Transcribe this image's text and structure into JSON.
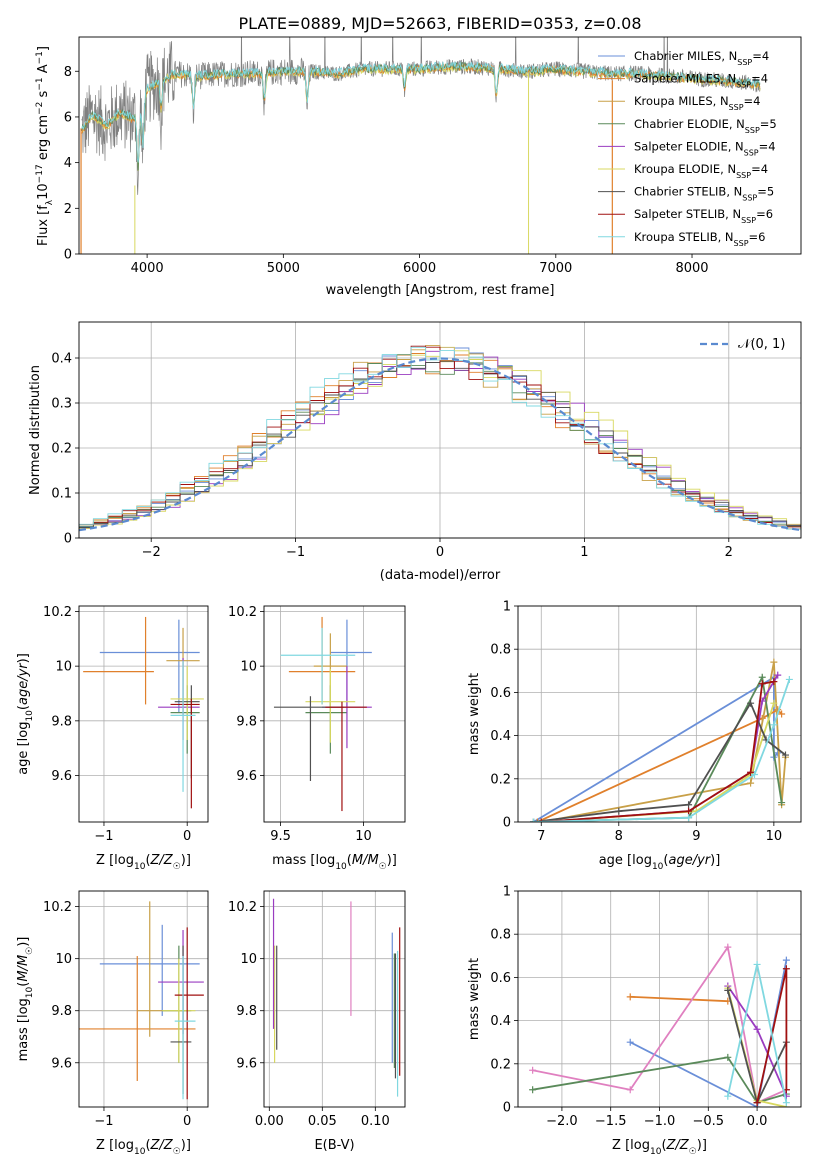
{
  "figure": {
    "title": "PLATE=0889, MJD=52663, FIBERID=0353, z=0.08"
  },
  "colors": {
    "data_spectrum": "#808080",
    "Chabrier MILES": "#6a8fd8",
    "Salpeter MILES": "#e0802c",
    "Kroupa MILES": "#c8a048",
    "Chabrier ELODIE": "#5a8a5a",
    "Salpeter ELODIE": "#9a3cc0",
    "Kroupa ELODIE": "#d8d860",
    "Chabrier STELIB": "#505050",
    "Salpeter STELIB": "#a01010",
    "Kroupa STELIB": "#80d8e0",
    "Kroupa MILES lines": "#e080c0",
    "normal_dist": "#5a8ad0"
  },
  "chart_data": [
    {
      "id": "spectrum",
      "type": "line",
      "title": "PLATE=0889, MJD=52663, FIBERID=0353, z=0.08",
      "xlabel": "wavelength [Angstrom, rest frame]",
      "ylabel": "Flux [f_λ 10^-17 erg cm^-2 s^-1 A^-1]",
      "xlim": [
        3500,
        8800
      ],
      "ylim": [
        0,
        9.5
      ],
      "xticks": [
        4000,
        5000,
        6000,
        7000,
        8000
      ],
      "yticks": [
        0,
        2,
        4,
        6,
        8
      ],
      "grid": false,
      "legend_loc": "upper right",
      "legend": [
        {
          "label": "Chabrier MILES, N",
          "sub": "SSP",
          "suffix": "=4",
          "color": "#6a8fd8"
        },
        {
          "label": "Salpeter MILES, N",
          "sub": "SSP",
          "suffix": "=4",
          "color": "#e0802c"
        },
        {
          "label": "Kroupa MILES, N",
          "sub": "SSP",
          "suffix": "=4",
          "color": "#c8a048"
        },
        {
          "label": "Chabrier ELODIE, N",
          "sub": "SSP",
          "suffix": "=5",
          "color": "#5a8a5a"
        },
        {
          "label": "Salpeter ELODIE, N",
          "sub": "SSP",
          "suffix": "=4",
          "color": "#9a3cc0"
        },
        {
          "label": "Kroupa ELODIE, N",
          "sub": "SSP",
          "suffix": "=4",
          "color": "#d8d860"
        },
        {
          "label": "Chabrier STELIB, N",
          "sub": "SSP",
          "suffix": "=5",
          "color": "#505050"
        },
        {
          "label": "Salpeter STELIB, N",
          "sub": "SSP",
          "suffix": "=6",
          "color": "#a01010"
        },
        {
          "label": "Kroupa STELIB, N",
          "sub": "SSP",
          "suffix": "=6",
          "color": "#80d8e0"
        }
      ],
      "spectrum_envelope": {
        "x": [
          3520,
          3600,
          3700,
          3800,
          3900,
          4000,
          4100,
          4200,
          4400,
          4600,
          4800,
          5000,
          5200,
          5400,
          5600,
          5800,
          6000,
          6200,
          6400,
          6600,
          6800,
          7000,
          7200,
          7400,
          7600,
          7800,
          8000,
          8200,
          8400,
          8500
        ],
        "y": [
          5.4,
          6.1,
          5.6,
          6.2,
          5.9,
          7.2,
          7.6,
          7.9,
          7.8,
          7.9,
          7.9,
          8.0,
          8.0,
          7.9,
          8.1,
          8.1,
          8.1,
          8.2,
          8.2,
          8.1,
          8.0,
          8.1,
          8.0,
          7.9,
          7.9,
          7.8,
          7.7,
          7.6,
          7.5,
          7.4
        ]
      }
    },
    {
      "id": "residuals",
      "type": "histogram",
      "xlabel": "(data-model)/error",
      "ylabel": "Normed distribution",
      "xlim": [
        -2.5,
        2.5
      ],
      "ylim": [
        0,
        0.48
      ],
      "xticks": [
        -2,
        -1,
        0,
        1,
        2
      ],
      "yticks": [
        0.0,
        0.1,
        0.2,
        0.3,
        0.4
      ],
      "grid": true,
      "legend_loc": "upper right",
      "legend": [
        {
          "label": "𝒩(0, 1)",
          "color": "#5a8ad0",
          "style": "dashed"
        }
      ]
    },
    {
      "id": "age_vs_Z",
      "type": "errorbar",
      "xlabel": "Z [log10(Z/Z☉)]",
      "ylabel": "age [log10(age/yr)]",
      "xlim": [
        -1.3,
        0.25
      ],
      "ylim": [
        9.43,
        10.22
      ],
      "xticks": [
        -1,
        0
      ],
      "yticks": [
        9.6,
        9.8,
        10.0,
        10.2
      ],
      "grid": true,
      "points": [
        {
          "series": "Chabrier MILES",
          "x": -0.1,
          "xerr": [
            0.95,
            0.25
          ],
          "y": 10.05,
          "yerr": [
            0.22,
            0.12
          ]
        },
        {
          "series": "Salpeter MILES",
          "x": -0.5,
          "xerr": [
            0.75,
            0.1
          ],
          "y": 9.98,
          "yerr": [
            0.12,
            0.2
          ]
        },
        {
          "series": "Kroupa MILES",
          "x": -0.05,
          "xerr": [
            0.2,
            0.2
          ],
          "y": 10.02,
          "yerr": [
            0.2,
            0.12
          ]
        },
        {
          "series": "Chabrier ELODIE",
          "x": 0.0,
          "xerr": [
            0.2,
            0.15
          ],
          "y": 9.83,
          "yerr": [
            0.15,
            0.1
          ]
        },
        {
          "series": "Salpeter ELODIE",
          "x": -0.05,
          "xerr": [
            0.3,
            0.2
          ],
          "y": 9.85,
          "yerr": [
            0.12,
            0.18
          ]
        },
        {
          "series": "Kroupa ELODIE",
          "x": 0.0,
          "xerr": [
            0.2,
            0.2
          ],
          "y": 9.88,
          "yerr": [
            0.15,
            0.12
          ]
        },
        {
          "series": "Chabrier STELIB",
          "x": 0.05,
          "xerr": [
            0.2,
            0.1
          ],
          "y": 9.87,
          "yerr": [
            0.28,
            0.06
          ]
        },
        {
          "series": "Salpeter STELIB",
          "x": 0.05,
          "xerr": [
            0.25,
            0.1
          ],
          "y": 9.86,
          "yerr": [
            0.38,
            0.02
          ]
        },
        {
          "series": "Kroupa STELIB",
          "x": -0.05,
          "xerr": [
            0.15,
            0.15
          ],
          "y": 9.82,
          "yerr": [
            0.28,
            0.2
          ]
        }
      ]
    },
    {
      "id": "age_vs_mass",
      "type": "errorbar",
      "xlabel": "mass [log10(M/M☉)]",
      "ylabel": "",
      "xlim": [
        9.4,
        10.25
      ],
      "ylim": [
        9.43,
        10.22
      ],
      "xticks": [
        9.5,
        10.0
      ],
      "yticks": [
        9.6,
        9.8,
        10.0,
        10.2
      ],
      "grid": true,
      "points": [
        {
          "series": "Chabrier MILES",
          "x": 9.9,
          "xerr": [
            0.1,
            0.15
          ],
          "y": 10.05,
          "yerr": [
            0.2,
            0.12
          ]
        },
        {
          "series": "Salpeter MILES",
          "x": 9.75,
          "xerr": [
            0.2,
            0.2
          ],
          "y": 9.98,
          "yerr": [
            0.12,
            0.2
          ]
        },
        {
          "series": "Kroupa MILES",
          "x": 9.8,
          "xerr": [
            0.1,
            0.1
          ],
          "y": 10.0,
          "yerr": [
            0.15,
            0.12
          ]
        },
        {
          "series": "Chabrier ELODIE",
          "x": 9.8,
          "xerr": [
            0.15,
            0.1
          ],
          "y": 9.83,
          "yerr": [
            0.15,
            0.1
          ]
        },
        {
          "series": "Salpeter ELODIE",
          "x": 9.9,
          "xerr": [
            0.15,
            0.15
          ],
          "y": 9.85,
          "yerr": [
            0.15,
            0.15
          ]
        },
        {
          "series": "Kroupa ELODIE",
          "x": 9.8,
          "xerr": [
            0.15,
            0.15
          ],
          "y": 9.87,
          "yerr": [
            0.15,
            0.12
          ]
        },
        {
          "series": "Chabrier STELIB",
          "x": 9.68,
          "xerr": [
            0.22,
            0.2
          ],
          "y": 9.85,
          "yerr": [
            0.27,
            0.04
          ]
        },
        {
          "series": "Salpeter STELIB",
          "x": 9.87,
          "xerr": [
            0.1,
            0.15
          ],
          "y": 9.85,
          "yerr": [
            0.38,
            0.02
          ]
        },
        {
          "series": "Kroupa STELIB",
          "x": 9.75,
          "xerr": [
            0.25,
            0.2
          ],
          "y": 10.04,
          "yerr": [
            0.18,
            0.1
          ]
        }
      ]
    },
    {
      "id": "massweight_vs_age",
      "type": "line",
      "xlabel": "age [log10(age/yr)]",
      "ylabel": "mass weight",
      "xlim": [
        6.7,
        10.35
      ],
      "ylim": [
        0,
        1.0
      ],
      "xticks": [
        7,
        8,
        9,
        10
      ],
      "yticks": [
        0.0,
        0.2,
        0.4,
        0.6,
        0.8,
        1.0
      ],
      "grid": true,
      "series": [
        {
          "name": "Chabrier MILES",
          "x": [
            6.9,
            10.0,
            10.0,
            10.05
          ],
          "y": [
            0.0,
            0.67,
            0.3,
            0.32
          ]
        },
        {
          "name": "Salpeter MILES",
          "x": [
            6.95,
            9.85,
            10.05,
            10.1
          ],
          "y": [
            0.0,
            0.48,
            0.52,
            0.5
          ]
        },
        {
          "name": "Kroupa MILES",
          "x": [
            7.0,
            9.7,
            10.0,
            10.1,
            10.15
          ],
          "y": [
            0.0,
            0.18,
            0.74,
            0.08,
            0.3
          ]
        },
        {
          "name": "Chabrier ELODIE",
          "x": [
            6.9,
            8.9,
            9.85,
            10.1
          ],
          "y": [
            0.0,
            0.02,
            0.67,
            0.09
          ]
        },
        {
          "name": "Salpeter ELODIE",
          "x": [
            7.0,
            8.9,
            9.7,
            9.85,
            10.05
          ],
          "y": [
            0.0,
            0.05,
            0.23,
            0.56,
            0.68
          ]
        },
        {
          "name": "Kroupa ELODIE",
          "x": [
            7.0,
            9.0,
            9.7,
            10.0
          ],
          "y": [
            0.0,
            0.05,
            0.22,
            0.55
          ]
        },
        {
          "name": "Chabrier STELIB",
          "x": [
            6.9,
            8.0,
            8.9,
            9.7,
            9.9,
            10.15
          ],
          "y": [
            0.0,
            0.05,
            0.08,
            0.55,
            0.38,
            0.31
          ]
        },
        {
          "name": "Salpeter STELIB",
          "x": [
            7.0,
            8.9,
            9.7,
            9.85,
            10.0
          ],
          "y": [
            0.0,
            0.05,
            0.23,
            0.64,
            0.65
          ]
        },
        {
          "name": "Kroupa STELIB",
          "x": [
            6.9,
            8.9,
            9.75,
            10.0,
            10.2
          ],
          "y": [
            0.0,
            0.02,
            0.22,
            0.45,
            0.66
          ]
        }
      ]
    },
    {
      "id": "mass_vs_Z",
      "type": "errorbar",
      "xlabel": "Z [log10(Z/Z☉)]",
      "ylabel": "mass [log10(M/M☉)]",
      "xlim": [
        -1.3,
        0.25
      ],
      "ylim": [
        9.43,
        10.26
      ],
      "xticks": [
        -1,
        0
      ],
      "yticks": [
        9.6,
        9.8,
        10.0,
        10.2
      ],
      "grid": true,
      "points": [
        {
          "series": "Chabrier MILES",
          "x": -0.3,
          "xerr": [
            0.75,
            0.45
          ],
          "y": 9.98,
          "yerr": [
            0.2,
            0.15
          ]
        },
        {
          "series": "Salpeter MILES",
          "x": -0.6,
          "xerr": [
            0.7,
            0.7
          ],
          "y": 9.73,
          "yerr": [
            0.2,
            0.28
          ]
        },
        {
          "series": "Kroupa MILES",
          "x": -0.45,
          "xerr": [
            0.15,
            0.45
          ],
          "y": 9.8,
          "yerr": [
            0.1,
            0.42
          ]
        },
        {
          "series": "Chabrier ELODIE",
          "x": -0.1,
          "xerr": [
            0.2,
            0.15
          ],
          "y": 9.8,
          "yerr": [
            0.2,
            0.25
          ]
        },
        {
          "series": "Salpeter ELODIE",
          "x": -0.05,
          "xerr": [
            0.3,
            0.25
          ],
          "y": 9.91,
          "yerr": [
            0.2,
            0.2
          ]
        },
        {
          "series": "Kroupa ELODIE",
          "x": -0.1,
          "xerr": [
            0.2,
            0.2
          ],
          "y": 9.8,
          "yerr": [
            0.2,
            0.2
          ]
        },
        {
          "series": "Chabrier STELIB",
          "x": -0.05,
          "xerr": [
            0.15,
            0.1
          ],
          "y": 9.68,
          "yerr": [
            0.2,
            0.37
          ]
        },
        {
          "series": "Salpeter STELIB",
          "x": 0.0,
          "xerr": [
            0.15,
            0.2
          ],
          "y": 9.86,
          "yerr": [
            0.4,
            0.26
          ]
        },
        {
          "series": "Kroupa STELIB",
          "x": -0.05,
          "xerr": [
            0.1,
            0.15
          ],
          "y": 9.76,
          "yerr": [
            0.3,
            0.25
          ]
        }
      ]
    },
    {
      "id": "ebv_panel",
      "type": "errorbar",
      "xlabel": "E(B-V)",
      "ylabel": "",
      "xlim": [
        -0.005,
        0.128
      ],
      "ylim": [
        9.43,
        10.26
      ],
      "xticks": [
        0.0,
        0.05,
        0.1
      ],
      "xtick_labels": [
        "0.00",
        "0.05",
        "0.10"
      ],
      "yticks": [
        9.6,
        9.8,
        10.0,
        10.2
      ],
      "grid": true,
      "points": [
        {
          "series": "Kroupa ELODIE",
          "x": 0.005,
          "y": 9.85,
          "yerr": [
            0.25,
            0.2
          ]
        },
        {
          "series": "Chabrier STELIB",
          "x": 0.007,
          "y": 9.9,
          "yerr": [
            0.25,
            0.15
          ]
        },
        {
          "series": "Salpeter ELODIE",
          "x": 0.004,
          "y": 9.95,
          "yerr": [
            0.22,
            0.28
          ]
        },
        {
          "series": "Kroupa MILES lines",
          "x": 0.077,
          "y": 10.0,
          "yerr": [
            0.22,
            0.22
          ]
        },
        {
          "series": "Chabrier MILES",
          "x": 0.116,
          "y": 9.85,
          "yerr": [
            0.25,
            0.25
          ]
        },
        {
          "series": "Salpeter STELIB",
          "x": 0.123,
          "y": 9.85,
          "yerr": [
            0.3,
            0.27
          ]
        },
        {
          "series": "Kroupa STELIB",
          "x": 0.121,
          "y": 9.75,
          "yerr": [
            0.28,
            0.28
          ]
        },
        {
          "series": "Chabrier ELODIE",
          "x": 0.118,
          "y": 9.8,
          "yerr": [
            0.22,
            0.22
          ]
        },
        {
          "series": "Chabrier STELIB",
          "x": 0.119,
          "y": 9.78,
          "yerr": [
            0.24,
            0.24
          ]
        }
      ]
    },
    {
      "id": "massweight_vs_Z",
      "type": "line",
      "xlabel": "Z [log10(Z/Z☉)]",
      "ylabel": "mass weight",
      "xlim": [
        -2.45,
        0.45
      ],
      "ylim": [
        0,
        1.0
      ],
      "xticks": [
        -2.0,
        -1.5,
        -1.0,
        -0.5,
        0.0
      ],
      "xtick_labels": [
        "−2.0",
        "−1.5",
        "−1.0",
        "−0.5",
        "0.0"
      ],
      "yticks": [
        0.0,
        0.2,
        0.4,
        0.6,
        0.8,
        1.0
      ],
      "grid": true,
      "series": [
        {
          "name": "Chabrier MILES",
          "x": [
            -1.3,
            0.0,
            0.3
          ],
          "y": [
            0.3,
            0.0,
            0.68
          ]
        },
        {
          "name": "Salpeter MILES",
          "x": [
            -1.3,
            -0.3
          ],
          "y": [
            0.51,
            0.49
          ]
        },
        {
          "name": "Kroupa MILES lines",
          "x": [
            -2.3,
            -1.3,
            -0.3,
            0.0,
            0.3
          ],
          "y": [
            0.17,
            0.08,
            0.74,
            0.02,
            0.08
          ]
        },
        {
          "name": "Chabrier ELODIE",
          "x": [
            -2.3,
            -0.3,
            0.0,
            0.3
          ],
          "y": [
            0.08,
            0.23,
            0.02,
            0.06
          ]
        },
        {
          "name": "Salpeter ELODIE",
          "x": [
            -0.3,
            0.0,
            0.3
          ],
          "y": [
            0.56,
            0.36,
            0.05
          ]
        },
        {
          "name": "Kroupa ELODIE",
          "x": [
            -0.3,
            0.0,
            0.3
          ],
          "y": [
            0.55,
            0.03,
            0.0
          ]
        },
        {
          "name": "Chabrier STELIB",
          "x": [
            -0.3,
            0.0,
            0.3
          ],
          "y": [
            0.54,
            0.02,
            0.3
          ]
        },
        {
          "name": "Salpeter STELIB",
          "x": [
            0.0,
            0.3,
            0.3
          ],
          "y": [
            0.02,
            0.64,
            0.08
          ]
        },
        {
          "name": "Kroupa STELIB",
          "x": [
            -0.3,
            0.0,
            0.3
          ],
          "y": [
            0.05,
            0.66,
            0.02
          ]
        }
      ]
    }
  ]
}
